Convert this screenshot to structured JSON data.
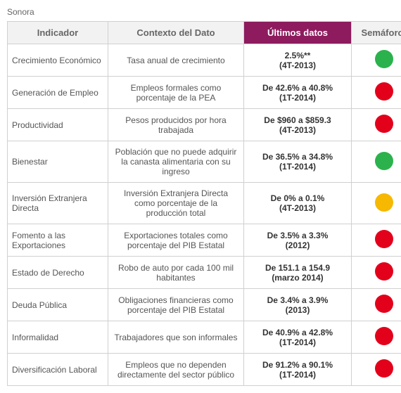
{
  "region": "Sonora",
  "columns": {
    "indicador": "Indicador",
    "contexto": "Contexto del Dato",
    "datos": "Últimos datos",
    "semaforo": "Semáforo*"
  },
  "colors": {
    "green": "#2bb24c",
    "red": "#e3001b",
    "yellow": "#f6b800"
  },
  "rows": [
    {
      "indicador": "Crecimiento Económico",
      "contexto": "Tasa  anual de crecimiento",
      "datos_line1": "2.5%**",
      "datos_line2": "(4T-2013)",
      "color": "green"
    },
    {
      "indicador": "Generación de Empleo",
      "contexto": "Empleos formales como porcentaje de la PEA",
      "datos_line1": "De 42.6% a 40.8%",
      "datos_line2": "(1T-2014)",
      "color": "red"
    },
    {
      "indicador": "Productividad",
      "contexto": "Pesos producidos por hora trabajada",
      "datos_line1": "De $960 a $859.3",
      "datos_line2": "(4T-2013)",
      "color": "red"
    },
    {
      "indicador": "Bienestar",
      "contexto": "Población que no puede adquirir la canasta alimentaria con su ingreso",
      "datos_line1": "De 36.5% a 34.8%",
      "datos_line2": "(1T-2014)",
      "color": "green"
    },
    {
      "indicador": "Inversión Extranjera Directa",
      "contexto": "Inversión Extranjera Directa como porcentaje de la producción total",
      "datos_line1": "De 0% a 0.1%",
      "datos_line2": "(4T-2013)",
      "color": "yellow"
    },
    {
      "indicador": "Fomento a las Exportaciones",
      "contexto": "Exportaciones totales como porcentaje del PIB Estatal",
      "datos_line1": "De 3.5% a 3.3%",
      "datos_line2": "(2012)",
      "color": "red"
    },
    {
      "indicador": "Estado de Derecho",
      "contexto": "Robo de auto por cada 100 mil habitantes",
      "datos_line1": "De 151.1 a 154.9",
      "datos_line2": "(marzo 2014)",
      "color": "red"
    },
    {
      "indicador": "Deuda Pública",
      "contexto": "Obligaciones financieras como porcentaje del PIB Estatal",
      "datos_line1": "De 3.4% a 3.9%",
      "datos_line2": "(2013)",
      "color": "red"
    },
    {
      "indicador": "Informalidad",
      "contexto": "Trabajadores que son informales",
      "datos_line1": "De 40.9% a 42.8%",
      "datos_line2": "(1T-2014)",
      "color": "red"
    },
    {
      "indicador": "Diversificación Laboral",
      "contexto": "Empleos que no dependen directamente del sector público",
      "datos_line1": "De 91.2% a 90.1%",
      "datos_line2": "(1T-2014)",
      "color": "red"
    }
  ]
}
